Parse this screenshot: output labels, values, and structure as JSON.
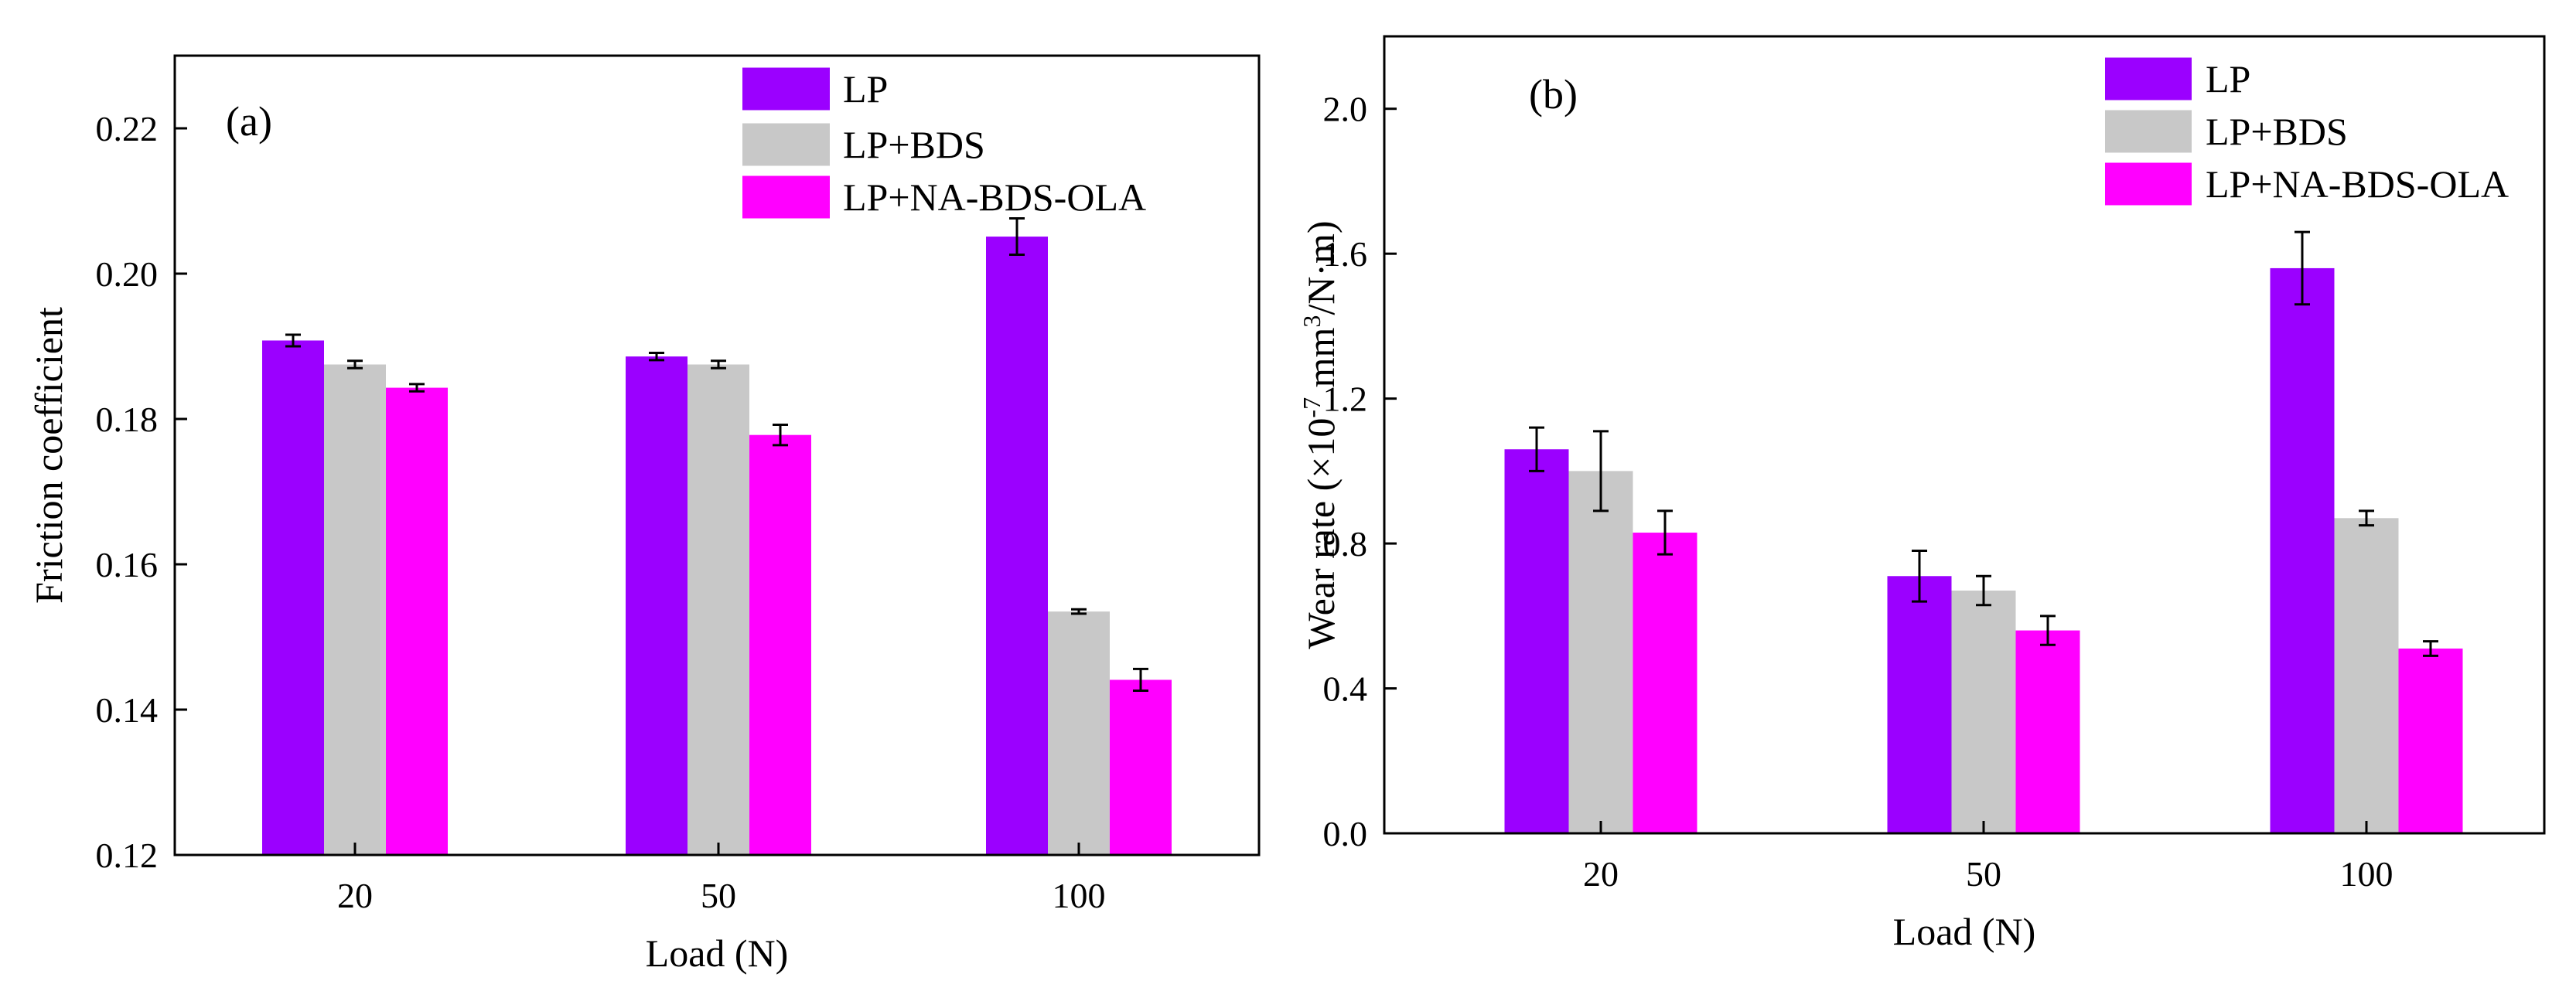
{
  "chart_data": [
    {
      "type": "bar",
      "panel_label": "(a)",
      "xlabel": "Load (N)",
      "ylabel": "Friction coefficient",
      "categories": [
        "20",
        "50",
        "100"
      ],
      "ylim": [
        0.12,
        0.23
      ],
      "yticks": [
        "0.12",
        "0.14",
        "0.16",
        "0.18",
        "0.20",
        "0.22"
      ],
      "legend_position": "top-right",
      "series": [
        {
          "name": "LP",
          "color": "#9b00ff",
          "values": [
            0.1908,
            0.1886,
            0.2051
          ],
          "errors": [
            0.0008,
            0.0005,
            0.0025
          ]
        },
        {
          "name": "LP+BDS",
          "color": "#c8c8c8",
          "values": [
            0.1875,
            0.1875,
            0.1535
          ],
          "errors": [
            0.0005,
            0.0005,
            0.0003
          ]
        },
        {
          "name": "LP+NA-BDS-OLA",
          "color": "#ff00ff",
          "values": [
            0.1843,
            0.1778,
            0.1441
          ],
          "errors": [
            0.0005,
            0.0014,
            0.0015
          ]
        }
      ]
    },
    {
      "type": "bar",
      "panel_label": "(b)",
      "xlabel": "Load (N)",
      "ylabel": "Wear rate (×10^-7 mm^3/N·m)",
      "ylabel_parts": {
        "a": "Wear rate (×10",
        "exp1": "-7",
        "b": " mm",
        "exp2": "3",
        "c": "/N·m)"
      },
      "categories": [
        "20",
        "50",
        "100"
      ],
      "ylim": [
        0.0,
        2.2
      ],
      "yticks": [
        "0.0",
        "0.4",
        "0.8",
        "1.2",
        "1.6",
        "2.0"
      ],
      "legend_position": "top-right",
      "series": [
        {
          "name": "LP",
          "color": "#9b00ff",
          "values": [
            1.06,
            0.71,
            1.56
          ],
          "errors": [
            0.06,
            0.07,
            0.1
          ]
        },
        {
          "name": "LP+BDS",
          "color": "#c8c8c8",
          "values": [
            1.0,
            0.67,
            0.87
          ],
          "errors": [
            0.11,
            0.04,
            0.02
          ]
        },
        {
          "name": "LP+NA-BDS-OLA",
          "color": "#ff00ff",
          "values": [
            0.83,
            0.56,
            0.51
          ],
          "errors": [
            0.06,
            0.04,
            0.02
          ]
        }
      ]
    }
  ]
}
